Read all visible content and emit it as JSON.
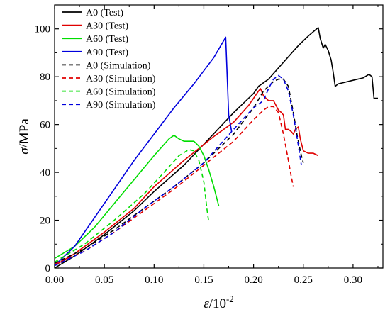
{
  "chart_data": {
    "type": "line",
    "title": "",
    "xlabel": {
      "symbol": "ε",
      "text": "/10",
      "sup": "-2"
    },
    "ylabel": {
      "symbol": "σ",
      "text": "/MPa"
    },
    "xlim": [
      0,
      0.33
    ],
    "ylim": [
      0,
      110
    ],
    "xticks": [
      "0.00",
      "0.05",
      "0.10",
      "0.15",
      "0.20",
      "0.25",
      "0.30"
    ],
    "xtick_values": [
      0,
      0.05,
      0.1,
      0.15,
      0.2,
      0.25,
      0.3
    ],
    "yticks": [
      "0",
      "20",
      "40",
      "60",
      "80",
      "100"
    ],
    "ytick_values": [
      0,
      20,
      40,
      60,
      80,
      100
    ],
    "grid": false,
    "legend_position": "top-left",
    "series": [
      {
        "name": "A0 (Test)",
        "color": "#000000",
        "style": "solid",
        "points": [
          [
            0,
            0
          ],
          [
            0.02,
            5
          ],
          [
            0.05,
            14
          ],
          [
            0.08,
            24
          ],
          [
            0.1,
            32
          ],
          [
            0.13,
            43
          ],
          [
            0.155,
            54
          ],
          [
            0.18,
            65
          ],
          [
            0.2,
            73
          ],
          [
            0.205,
            76
          ],
          [
            0.215,
            79
          ],
          [
            0.23,
            86
          ],
          [
            0.245,
            93
          ],
          [
            0.255,
            97
          ],
          [
            0.262,
            99.5
          ],
          [
            0.265,
            100.5
          ],
          [
            0.267,
            96
          ],
          [
            0.27,
            92
          ],
          [
            0.272,
            93.5
          ],
          [
            0.275,
            91
          ],
          [
            0.278,
            87
          ],
          [
            0.28,
            82
          ],
          [
            0.282,
            76
          ],
          [
            0.285,
            77
          ],
          [
            0.29,
            77.5
          ],
          [
            0.3,
            78.5
          ],
          [
            0.31,
            79.5
          ],
          [
            0.316,
            81
          ],
          [
            0.319,
            80
          ],
          [
            0.321,
            71
          ],
          [
            0.325,
            71
          ]
        ]
      },
      {
        "name": "A30 (Test)",
        "color": "#e00000",
        "style": "solid",
        "points": [
          [
            0,
            1
          ],
          [
            0.02,
            6
          ],
          [
            0.05,
            15
          ],
          [
            0.08,
            25
          ],
          [
            0.1,
            34
          ],
          [
            0.13,
            45
          ],
          [
            0.16,
            55
          ],
          [
            0.18,
            61
          ],
          [
            0.195,
            68
          ],
          [
            0.205,
            74
          ],
          [
            0.207,
            75
          ],
          [
            0.21,
            72
          ],
          [
            0.215,
            70
          ],
          [
            0.22,
            70
          ],
          [
            0.225,
            66
          ],
          [
            0.228,
            65
          ],
          [
            0.23,
            64
          ],
          [
            0.232,
            58
          ],
          [
            0.235,
            58
          ],
          [
            0.238,
            57
          ],
          [
            0.24,
            56
          ],
          [
            0.242,
            58
          ],
          [
            0.245,
            59
          ],
          [
            0.247,
            54
          ],
          [
            0.25,
            49
          ],
          [
            0.255,
            48
          ],
          [
            0.26,
            48
          ],
          [
            0.265,
            47
          ]
        ]
      },
      {
        "name": "A60 (Test)",
        "color": "#00dd00",
        "style": "solid",
        "points": [
          [
            0,
            4
          ],
          [
            0.02,
            9
          ],
          [
            0.04,
            17
          ],
          [
            0.06,
            27
          ],
          [
            0.08,
            37
          ],
          [
            0.1,
            47
          ],
          [
            0.115,
            54
          ],
          [
            0.12,
            55.5
          ],
          [
            0.125,
            54
          ],
          [
            0.13,
            53
          ],
          [
            0.14,
            53
          ],
          [
            0.145,
            51
          ],
          [
            0.15,
            47
          ],
          [
            0.155,
            41
          ],
          [
            0.16,
            34
          ],
          [
            0.165,
            26
          ]
        ]
      },
      {
        "name": "A90 (Test)",
        "color": "#0000dd",
        "style": "solid",
        "points": [
          [
            0,
            1
          ],
          [
            0.02,
            9
          ],
          [
            0.04,
            21
          ],
          [
            0.06,
            33
          ],
          [
            0.08,
            45
          ],
          [
            0.1,
            56
          ],
          [
            0.12,
            67
          ],
          [
            0.14,
            77
          ],
          [
            0.16,
            88
          ],
          [
            0.172,
            96.5
          ],
          [
            0.175,
            64
          ],
          [
            0.178,
            57
          ]
        ]
      },
      {
        "name": "A0 (Simulation)",
        "color": "#000000",
        "style": "dashed",
        "points": [
          [
            0,
            2
          ],
          [
            0.03,
            8
          ],
          [
            0.06,
            16
          ],
          [
            0.09,
            25
          ],
          [
            0.12,
            34
          ],
          [
            0.15,
            44
          ],
          [
            0.18,
            56
          ],
          [
            0.2,
            67
          ],
          [
            0.21,
            74
          ],
          [
            0.215,
            76
          ],
          [
            0.22,
            78
          ],
          [
            0.225,
            79
          ],
          [
            0.23,
            79
          ],
          [
            0.235,
            76
          ],
          [
            0.24,
            65
          ],
          [
            0.244,
            55
          ],
          [
            0.248,
            47
          ],
          [
            0.25,
            44
          ]
        ]
      },
      {
        "name": "A30 (Simulation)",
        "color": "#e00000",
        "style": "dashed",
        "points": [
          [
            0,
            1.5
          ],
          [
            0.03,
            7
          ],
          [
            0.06,
            15
          ],
          [
            0.09,
            24
          ],
          [
            0.12,
            33
          ],
          [
            0.15,
            43
          ],
          [
            0.18,
            53
          ],
          [
            0.2,
            62
          ],
          [
            0.21,
            66
          ],
          [
            0.215,
            67.5
          ],
          [
            0.22,
            67.5
          ],
          [
            0.225,
            65
          ],
          [
            0.23,
            56
          ],
          [
            0.235,
            45
          ],
          [
            0.238,
            38
          ],
          [
            0.24,
            34
          ]
        ]
      },
      {
        "name": "A60 (Simulation)",
        "color": "#00dd00",
        "style": "dashed",
        "points": [
          [
            0,
            2.5
          ],
          [
            0.03,
            10
          ],
          [
            0.06,
            20
          ],
          [
            0.09,
            31
          ],
          [
            0.11,
            40
          ],
          [
            0.125,
            47
          ],
          [
            0.135,
            49.5
          ],
          [
            0.14,
            49
          ],
          [
            0.145,
            45
          ],
          [
            0.15,
            36
          ],
          [
            0.153,
            25
          ],
          [
            0.155,
            19
          ]
        ]
      },
      {
        "name": "A90 (Simulation)",
        "color": "#0000dd",
        "style": "dashed",
        "points": [
          [
            0,
            1
          ],
          [
            0.03,
            7
          ],
          [
            0.06,
            15
          ],
          [
            0.09,
            25
          ],
          [
            0.12,
            34
          ],
          [
            0.15,
            44
          ],
          [
            0.18,
            58
          ],
          [
            0.2,
            67
          ],
          [
            0.21,
            70
          ],
          [
            0.215,
            75
          ],
          [
            0.22,
            79
          ],
          [
            0.225,
            80.5
          ],
          [
            0.23,
            79
          ],
          [
            0.235,
            74
          ],
          [
            0.24,
            64
          ],
          [
            0.244,
            54
          ],
          [
            0.248,
            43
          ]
        ]
      }
    ]
  }
}
